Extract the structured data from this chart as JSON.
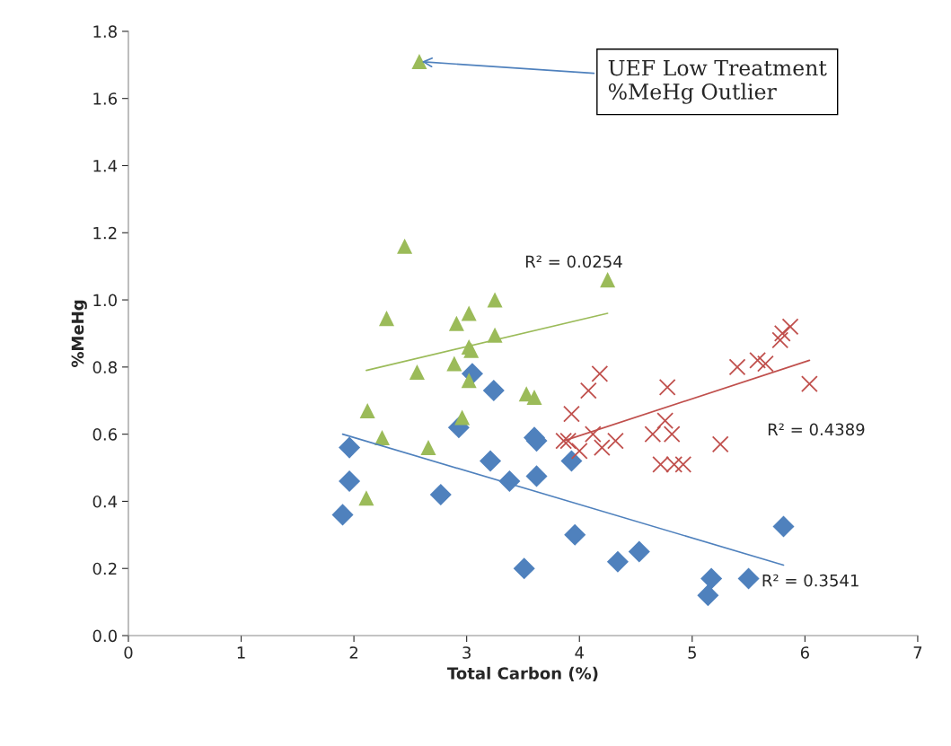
{
  "chart_data": {
    "type": "scatter",
    "xlabel": "Total Carbon (%)",
    "ylabel": "%MeHg",
    "xlim": [
      0,
      7
    ],
    "xticks": [
      0,
      1,
      2,
      3,
      4,
      5,
      6,
      7
    ],
    "ylim": [
      0,
      1.8
    ],
    "yticks": [
      {
        "value": 0,
        "label": "0.0"
      },
      {
        "value": 0.2,
        "label": "0.2"
      },
      {
        "value": 0.4,
        "label": "0.4"
      },
      {
        "value": 0.6,
        "label": "0.6"
      },
      {
        "value": 0.8,
        "label": "0.8"
      },
      {
        "value": 1.0,
        "label": "1.0"
      },
      {
        "value": 1.2,
        "label": "1.2"
      },
      {
        "value": 1.4,
        "label": "1.4"
      },
      {
        "value": 1.6,
        "label": "1.6"
      },
      {
        "value": 1.8,
        "label": "1.8"
      }
    ],
    "grid": false,
    "series": [
      {
        "marker": "diamond",
        "color": "#4f81bd",
        "x": [
          1.9,
          1.96,
          1.96,
          2.77,
          2.93,
          3.05,
          3.21,
          3.24,
          3.38,
          3.51,
          3.6,
          3.62,
          3.62,
          3.93,
          3.96,
          4.34,
          4.53,
          5.14,
          5.17,
          5.5,
          5.81
        ],
        "values": [
          0.36,
          0.56,
          0.46,
          0.42,
          0.62,
          0.78,
          0.52,
          0.73,
          0.46,
          0.2,
          0.59,
          0.58,
          0.475,
          0.52,
          0.3,
          0.22,
          0.25,
          0.12,
          0.17,
          0.17,
          0.325
        ]
      },
      {
        "marker": "cross",
        "color": "#c0504d",
        "x": [
          3.86,
          3.9,
          3.93,
          4.0,
          4.08,
          4.12,
          4.18,
          4.2,
          4.32,
          4.65,
          4.72,
          4.76,
          4.78,
          4.82,
          4.84,
          4.92,
          5.25,
          5.4,
          5.58,
          5.65,
          5.78,
          5.8,
          5.87,
          6.04
        ],
        "values": [
          0.58,
          0.58,
          0.66,
          0.55,
          0.73,
          0.6,
          0.78,
          0.56,
          0.58,
          0.6,
          0.51,
          0.64,
          0.74,
          0.6,
          0.51,
          0.51,
          0.57,
          0.8,
          0.82,
          0.81,
          0.88,
          0.9,
          0.92,
          0.75
        ]
      },
      {
        "marker": "triangle",
        "color": "#9bbb59",
        "x": [
          2.58,
          2.45,
          2.29,
          2.12,
          2.25,
          2.11,
          2.56,
          2.66,
          2.91,
          2.89,
          3.02,
          2.96,
          3.02,
          3.04,
          3.02,
          3.25,
          3.25,
          3.53,
          3.6,
          4.25
        ],
        "values": [
          1.71,
          1.16,
          0.945,
          0.67,
          0.59,
          0.41,
          0.785,
          0.56,
          0.93,
          0.81,
          0.96,
          0.65,
          0.86,
          0.85,
          0.76,
          1.0,
          0.895,
          0.72,
          0.71,
          1.06
        ]
      },
      {
        "type": "line",
        "line_style": "solid",
        "color": "#4f81bd",
        "x": [
          1.9,
          5.81
        ],
        "values": [
          0.6,
          0.21
        ]
      },
      {
        "type": "line",
        "line_style": "solid",
        "color": "#c0504d",
        "x": [
          3.86,
          6.04
        ],
        "values": [
          0.58,
          0.82
        ]
      },
      {
        "type": "line",
        "line_style": "solid",
        "color": "#9bbb59",
        "x": [
          2.11,
          4.25
        ],
        "values": [
          0.79,
          0.96
        ]
      }
    ],
    "annotations": [
      "R² = 0.0254",
      "R² = 0.4389",
      "R² = 0.3541",
      {
        "text": "UEF Low Treatment\n%MeHg Outlier",
        "x": 2.58,
        "y": 1.71
      }
    ]
  }
}
